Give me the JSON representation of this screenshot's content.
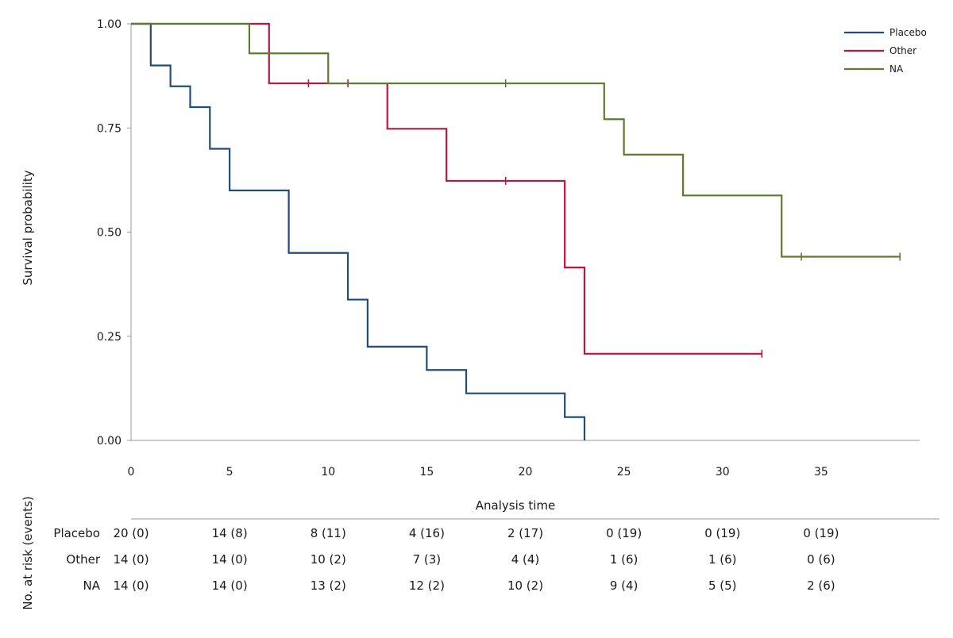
{
  "chart_data": {
    "type": "line",
    "subtype": "kaplan-meier",
    "title": "",
    "xlabel": "Analysis time",
    "ylabel": "Survival probability",
    "xlim": [
      0,
      40
    ],
    "ylim": [
      0,
      1
    ],
    "x_ticks": [
      0,
      5,
      10,
      15,
      20,
      25,
      30,
      35
    ],
    "x_tick_labels": [
      "0",
      "5",
      "10",
      "15",
      "20",
      "25",
      "30",
      "35"
    ],
    "y_ticks": [
      0,
      0.25,
      0.5,
      0.75,
      1
    ],
    "y_tick_labels": [
      "0.00",
      "0.25",
      "0.50",
      "0.75",
      "1.00"
    ],
    "grid": false,
    "legend_position": "top-right",
    "series": [
      {
        "name": "Placebo",
        "color": "#1f4e79",
        "steps": [
          [
            0,
            1.0
          ],
          [
            1,
            0.9
          ],
          [
            2,
            0.85
          ],
          [
            3,
            0.8
          ],
          [
            4,
            0.7
          ],
          [
            5,
            0.6
          ],
          [
            8,
            0.45
          ],
          [
            11,
            0.338
          ],
          [
            12,
            0.225
          ],
          [
            15,
            0.169
          ],
          [
            17,
            0.113
          ],
          [
            22,
            0.056
          ],
          [
            23,
            0.0
          ]
        ],
        "end_x": 23,
        "censored": []
      },
      {
        "name": "Other",
        "color": "#c0143c",
        "steps": [
          [
            0,
            1.0
          ],
          [
            7,
            0.857
          ],
          [
            13,
            0.748
          ],
          [
            16,
            0.623
          ],
          [
            22,
            0.415
          ],
          [
            23,
            0.208
          ]
        ],
        "end_x": 32,
        "censored": [
          [
            9,
            0.857
          ],
          [
            11,
            0.857
          ],
          [
            19,
            0.623
          ],
          [
            32,
            0.208
          ]
        ]
      },
      {
        "name": "NA",
        "color": "#5a7d2e",
        "steps": [
          [
            0,
            1.0
          ],
          [
            6,
            0.929
          ],
          [
            10,
            0.857
          ],
          [
            24,
            0.771
          ],
          [
            25,
            0.686
          ],
          [
            28,
            0.588
          ],
          [
            33,
            0.441
          ]
        ],
        "end_x": 39,
        "censored": [
          [
            19,
            0.857
          ],
          [
            34,
            0.441
          ],
          [
            39,
            0.441
          ]
        ]
      }
    ],
    "risk_table": {
      "title": "No. at risk (events)",
      "times": [
        0,
        5,
        10,
        15,
        20,
        25,
        30,
        35
      ],
      "rows": [
        {
          "group": "Placebo",
          "cells": [
            "20 (0)",
            "14 (8)",
            "8 (11)",
            "4 (16)",
            "2 (17)",
            "0 (19)",
            "0 (19)",
            "0 (19)"
          ]
        },
        {
          "group": "Other",
          "cells": [
            "14 (0)",
            "14 (0)",
            "10 (2)",
            "7 (3)",
            "4 (4)",
            "1 (6)",
            "1 (6)",
            "0 (6)"
          ]
        },
        {
          "group": "NA",
          "cells": [
            "14 (0)",
            "14 (0)",
            "13 (2)",
            "12 (2)",
            "10 (2)",
            "9 (4)",
            "5 (5)",
            "2 (6)"
          ]
        }
      ]
    }
  }
}
